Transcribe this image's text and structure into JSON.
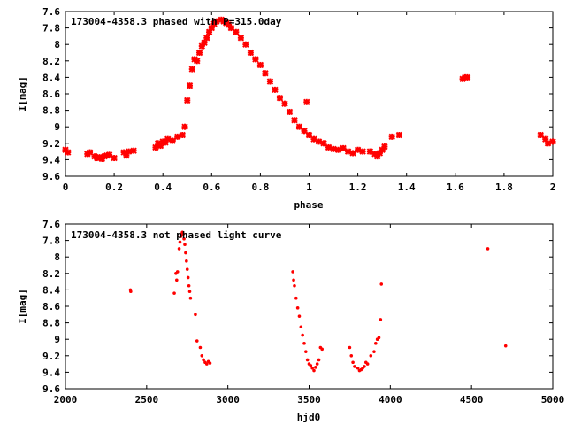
{
  "chart_data": [
    {
      "type": "scatter",
      "title": "173004-4358.3 phased with P=315.0day",
      "xlabel": "phase",
      "ylabel": "I[mag]",
      "xlim": [
        0,
        2
      ],
      "ylim": [
        9.6,
        7.6
      ],
      "y_inverted": true,
      "xticks": [
        "0",
        "0.2",
        "0.4",
        "0.6",
        "0.8",
        "1",
        "1.2",
        "1.4",
        "1.6",
        "1.8",
        "2"
      ],
      "yticks": [
        "7.6",
        "7.8",
        "8",
        "8.2",
        "8.4",
        "8.6",
        "8.8",
        "9",
        "9.2",
        "9.4",
        "9.6"
      ],
      "marker": "cross",
      "color": "#ff0000",
      "series": [
        {
          "points": [
            [
              0.0,
              9.28
            ],
            [
              0.01,
              9.31
            ],
            [
              0.09,
              9.33
            ],
            [
              0.1,
              9.31
            ],
            [
              0.12,
              9.36
            ],
            [
              0.13,
              9.38
            ],
            [
              0.14,
              9.37
            ],
            [
              0.15,
              9.39
            ],
            [
              0.16,
              9.36
            ],
            [
              0.17,
              9.35
            ],
            [
              0.18,
              9.34
            ],
            [
              0.2,
              9.38
            ],
            [
              0.24,
              9.31
            ],
            [
              0.25,
              9.35
            ],
            [
              0.26,
              9.3
            ],
            [
              0.28,
              9.29
            ],
            [
              0.37,
              9.25
            ],
            [
              0.38,
              9.2
            ],
            [
              0.39,
              9.23
            ],
            [
              0.4,
              9.18
            ],
            [
              0.41,
              9.19
            ],
            [
              0.42,
              9.15
            ],
            [
              0.44,
              9.17
            ],
            [
              0.46,
              9.12
            ],
            [
              0.48,
              9.1
            ],
            [
              0.49,
              9.0
            ],
            [
              0.5,
              8.68
            ],
            [
              0.51,
              8.5
            ],
            [
              0.52,
              8.3
            ],
            [
              0.53,
              8.18
            ],
            [
              0.54,
              8.2
            ],
            [
              0.55,
              8.1
            ],
            [
              0.56,
              8.02
            ],
            [
              0.57,
              7.98
            ],
            [
              0.58,
              7.92
            ],
            [
              0.59,
              7.85
            ],
            [
              0.6,
              7.8
            ],
            [
              0.61,
              7.75
            ],
            [
              0.62,
              7.72
            ],
            [
              0.64,
              7.7
            ],
            [
              0.65,
              7.72
            ],
            [
              0.66,
              7.74
            ],
            [
              0.67,
              7.76
            ],
            [
              0.68,
              7.8
            ],
            [
              0.7,
              7.85
            ],
            [
              0.72,
              7.92
            ],
            [
              0.74,
              8.0
            ],
            [
              0.76,
              8.1
            ],
            [
              0.78,
              8.18
            ],
            [
              0.8,
              8.25
            ],
            [
              0.82,
              8.35
            ],
            [
              0.84,
              8.45
            ],
            [
              0.86,
              8.55
            ],
            [
              0.88,
              8.65
            ],
            [
              0.9,
              8.72
            ],
            [
              0.92,
              8.82
            ],
            [
              0.94,
              8.92
            ],
            [
              0.96,
              9.0
            ],
            [
              0.98,
              9.05
            ],
            [
              0.99,
              8.7
            ],
            [
              1.0,
              9.1
            ],
            [
              1.02,
              9.15
            ],
            [
              1.04,
              9.18
            ],
            [
              1.06,
              9.2
            ],
            [
              1.08,
              9.25
            ],
            [
              1.1,
              9.27
            ],
            [
              1.12,
              9.28
            ],
            [
              1.14,
              9.26
            ],
            [
              1.16,
              9.3
            ],
            [
              1.18,
              9.32
            ],
            [
              1.2,
              9.28
            ],
            [
              1.22,
              9.3
            ],
            [
              1.25,
              9.3
            ],
            [
              1.27,
              9.33
            ],
            [
              1.28,
              9.36
            ],
            [
              1.29,
              9.32
            ],
            [
              1.3,
              9.28
            ],
            [
              1.31,
              9.24
            ],
            [
              1.34,
              9.12
            ],
            [
              1.37,
              9.1
            ],
            [
              1.63,
              8.42
            ],
            [
              1.64,
              8.4
            ],
            [
              1.65,
              8.4
            ],
            [
              1.95,
              9.1
            ],
            [
              1.97,
              9.15
            ],
            [
              1.98,
              9.2
            ],
            [
              2.0,
              9.18
            ]
          ]
        }
      ]
    },
    {
      "type": "scatter",
      "title": "173004-4358.3 not phased light curve",
      "xlabel": "hjd0",
      "ylabel": "I[mag]",
      "xlim": [
        2000,
        5000
      ],
      "ylim": [
        9.6,
        7.6
      ],
      "y_inverted": true,
      "xticks": [
        "2000",
        "2500",
        "3000",
        "3500",
        "4000",
        "4500",
        "5000"
      ],
      "yticks": [
        "7.6",
        "7.8",
        "8",
        "8.2",
        "8.4",
        "8.6",
        "8.8",
        "9",
        "9.2",
        "9.4",
        "9.6"
      ],
      "marker": "dot",
      "color": "#ff0000",
      "series": [
        {
          "points": [
            [
              2400,
              8.4
            ],
            [
              2402,
              8.42
            ],
            [
              2670,
              8.44
            ],
            [
              2680,
              8.2
            ],
            [
              2685,
              8.28
            ],
            [
              2690,
              8.18
            ],
            [
              2700,
              7.9
            ],
            [
              2705,
              7.82
            ],
            [
              2710,
              7.75
            ],
            [
              2715,
              7.72
            ],
            [
              2720,
              7.7
            ],
            [
              2725,
              7.72
            ],
            [
              2730,
              7.78
            ],
            [
              2735,
              7.85
            ],
            [
              2740,
              7.95
            ],
            [
              2745,
              8.05
            ],
            [
              2750,
              8.15
            ],
            [
              2755,
              8.25
            ],
            [
              2760,
              8.35
            ],
            [
              2765,
              8.42
            ],
            [
              2770,
              8.5
            ],
            [
              2800,
              8.7
            ],
            [
              2810,
              9.02
            ],
            [
              2830,
              9.1
            ],
            [
              2840,
              9.2
            ],
            [
              2850,
              9.25
            ],
            [
              2860,
              9.28
            ],
            [
              2870,
              9.3
            ],
            [
              2880,
              9.27
            ],
            [
              2890,
              9.29
            ],
            [
              3400,
              8.18
            ],
            [
              3405,
              8.28
            ],
            [
              3410,
              8.35
            ],
            [
              3420,
              8.5
            ],
            [
              3430,
              8.62
            ],
            [
              3440,
              8.72
            ],
            [
              3450,
              8.85
            ],
            [
              3460,
              8.95
            ],
            [
              3470,
              9.05
            ],
            [
              3480,
              9.15
            ],
            [
              3490,
              9.25
            ],
            [
              3500,
              9.3
            ],
            [
              3510,
              9.32
            ],
            [
              3520,
              9.35
            ],
            [
              3530,
              9.38
            ],
            [
              3540,
              9.34
            ],
            [
              3550,
              9.3
            ],
            [
              3560,
              9.25
            ],
            [
              3570,
              9.1
            ],
            [
              3580,
              9.12
            ],
            [
              3750,
              9.1
            ],
            [
              3760,
              9.2
            ],
            [
              3770,
              9.28
            ],
            [
              3780,
              9.33
            ],
            [
              3800,
              9.35
            ],
            [
              3810,
              9.38
            ],
            [
              3820,
              9.37
            ],
            [
              3830,
              9.35
            ],
            [
              3840,
              9.33
            ],
            [
              3850,
              9.28
            ],
            [
              3860,
              9.3
            ],
            [
              3880,
              9.2
            ],
            [
              3900,
              9.15
            ],
            [
              3910,
              9.05
            ],
            [
              3920,
              9.0
            ],
            [
              3930,
              8.98
            ],
            [
              3940,
              8.76
            ],
            [
              3945,
              8.33
            ],
            [
              4600,
              7.9
            ],
            [
              4710,
              9.08
            ]
          ]
        }
      ]
    }
  ]
}
